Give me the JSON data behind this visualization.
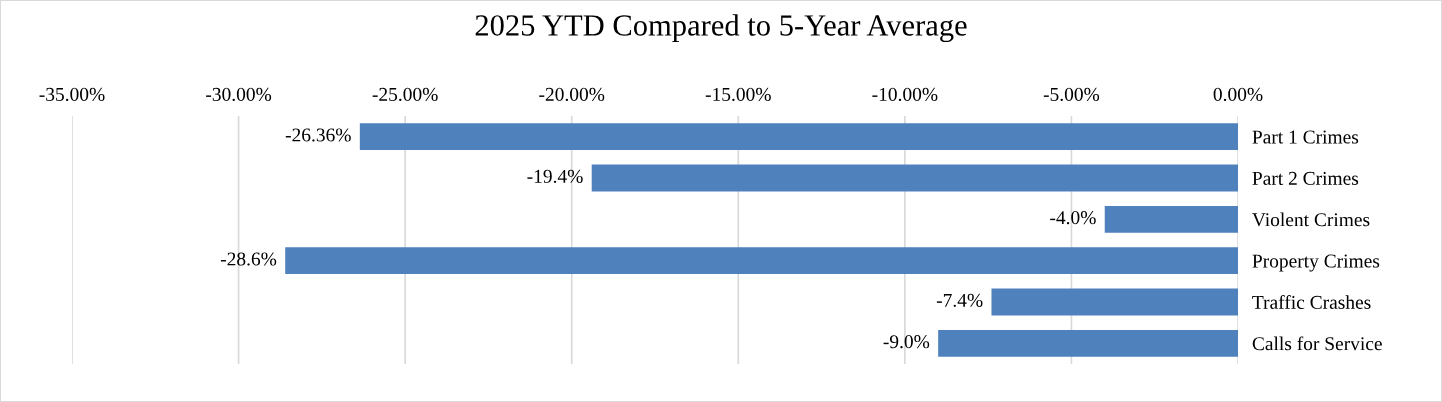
{
  "chart_data": {
    "type": "bar",
    "orientation": "horizontal",
    "title": "2025 YTD Compared to 5-Year Average",
    "categories": [
      "Part 1 Crimes",
      "Part 2 Crimes",
      "Violent Crimes",
      "Property Crimes",
      "Traffic Crashes",
      "Calls for Service"
    ],
    "values": [
      -26.36,
      -19.4,
      -4.0,
      -28.6,
      -7.4,
      -9.0
    ],
    "value_labels": [
      "-26.36%",
      "-19.4%",
      "-4.0%",
      "-28.6%",
      "-7.4%",
      "-9.0%"
    ],
    "color": "#4f81bd",
    "xlim": [
      -35,
      0
    ],
    "xticks": [
      {
        "value": -35,
        "label": "-35.00%"
      },
      {
        "value": -30,
        "label": "-30.00%"
      },
      {
        "value": -25,
        "label": "-25.00%"
      },
      {
        "value": -20,
        "label": "-20.00%"
      },
      {
        "value": -15,
        "label": "-15.00%"
      },
      {
        "value": -10,
        "label": "-10.00%"
      },
      {
        "value": -5,
        "label": "-5.00%"
      },
      {
        "value": 0,
        "label": "0.00%"
      }
    ],
    "grid": "x"
  }
}
